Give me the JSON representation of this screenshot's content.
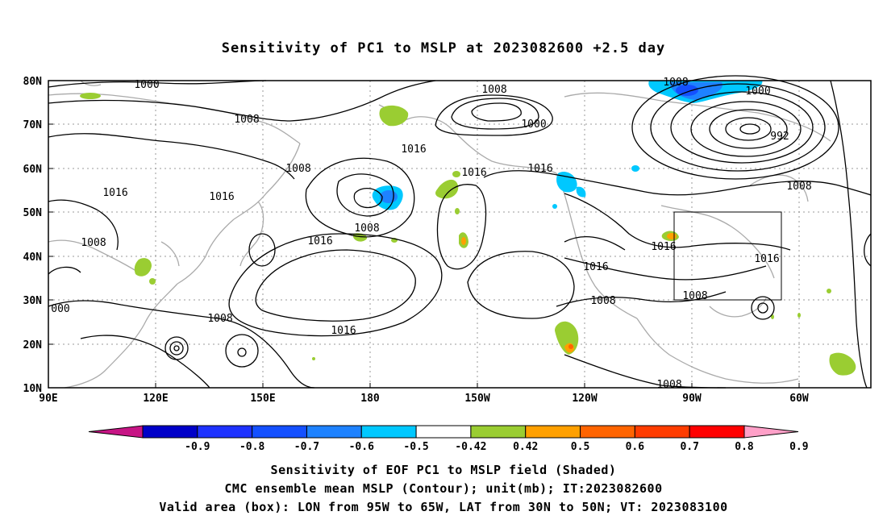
{
  "title": "Sensitivity of PC1 to MSLP at 2023082600 +2.5 day",
  "axes": {
    "lat_ticks": [
      "80N",
      "70N",
      "60N",
      "50N",
      "40N",
      "30N",
      "20N",
      "10N"
    ],
    "lon_ticks": [
      "90E",
      "120E",
      "150E",
      "180",
      "150W",
      "120W",
      "90W",
      "60W"
    ]
  },
  "contour_labels": [
    "1000",
    "1008",
    "1008",
    "1000",
    "1008",
    "1000",
    "992",
    "1016",
    "1008",
    "1016",
    "1016",
    "1016",
    "1016",
    "1008",
    "1016",
    "1016",
    "1016",
    "1008",
    "1008",
    "1016",
    "1008",
    "1016",
    "1008",
    "000",
    "1008",
    "1008"
  ],
  "colorbar": {
    "labels": [
      "-0.9",
      "-0.8",
      "-0.7",
      "-0.6",
      "-0.5",
      "-0.42",
      "0.42",
      "0.5",
      "0.6",
      "0.7",
      "0.8",
      "0.9"
    ],
    "colors": [
      "#c71585",
      "#0000c8",
      "#1e32ff",
      "#1450ff",
      "#1e82ff",
      "#00c8ff",
      "#ffffff",
      "#9acd32",
      "#ffa000",
      "#ff6400",
      "#ff3c00",
      "#ff0000",
      "#ffa0c8"
    ]
  },
  "captions": {
    "line1": "Sensitivity of EOF PC1 to MSLP field (Shaded)",
    "line2": "CMC ensemble mean MSLP (Contour); unit(mb); IT:2023082600",
    "line3": "Valid area (box): LON from 95W to 65W, LAT from 30N to 50N; VT: 2023083100"
  }
}
